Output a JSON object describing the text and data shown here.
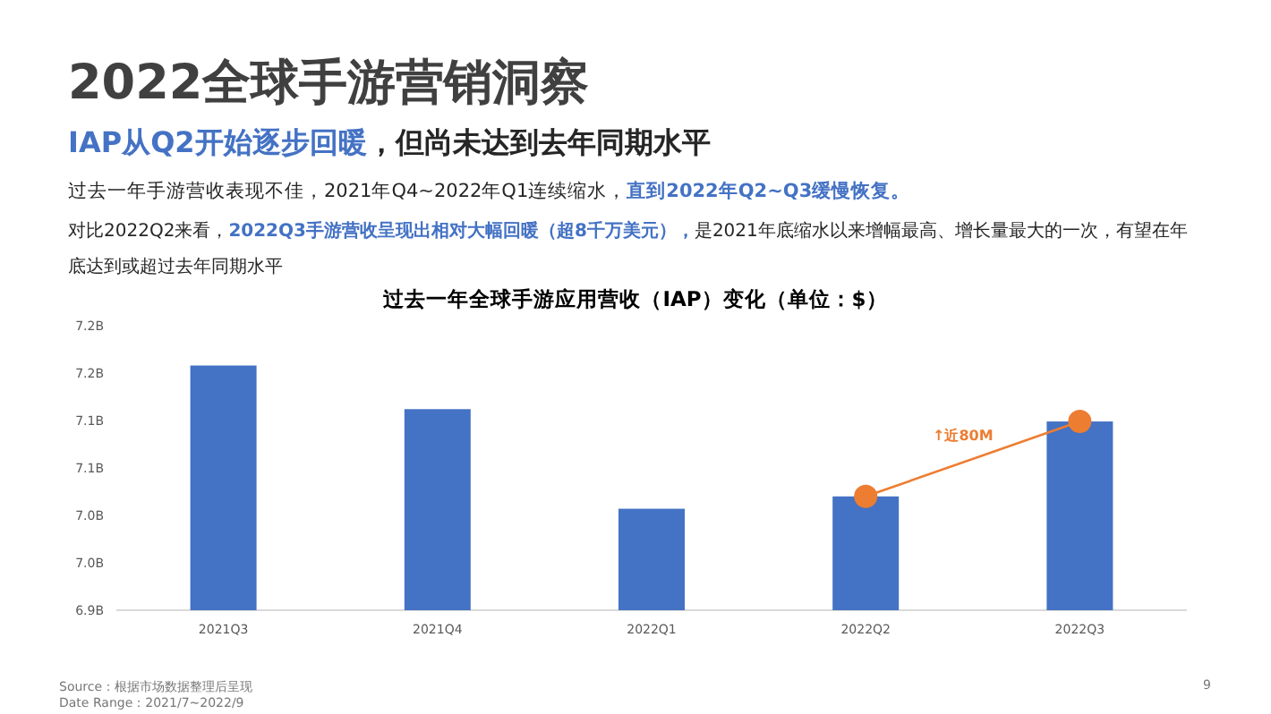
{
  "chart_data": {
    "type": "bar",
    "title": "2022全球手游营销洞察",
    "subtitle": "**IAP从Q2开始逐步回暖**，但尚未达到去年同期水平",
    "annotations": [
      "过去一年手游营收表现不佳，2021年Q4~2022年Q1连续缩水，**直到2022年Q2~Q3缓慢恢复。**",
      "对比2022Q2来看，**2022Q3手游营收呈现出相对大幅回暖（超8千万美元），**是2021年底缩水以来增幅最高、增长量最大的一次，有望在年底达到或超过去年同期水平",
      "过去一年全球手游应用营收（IAP）变化（单位：$）",
      "↑近80M",
      "Source：根据市场数据整理后呈现",
      "Date Range：2021/7~2022/9",
      "9"
    ],
    "categories": [
      "2021Q3",
      "2021Q4",
      "2022Q1",
      "2022Q2",
      "2022Q3"
    ],
    "series": [
      {
        "color": "#4472c4",
        "values": [
          7.208,
          7.162,
          7.057,
          7.07,
          7.149
        ]
      },
      {
        "type": "line",
        "color": "#ed7d31",
        "marker": "circle",
        "x": [
          "2022Q2",
          "2022Q3"
        ],
        "values": [
          7.07,
          7.149
        ]
      }
    ],
    "ylim": [
      6.95,
      7.25
    ],
    "yticks": [
      {
        "value": 6.95,
        "label": "6.9B"
      },
      {
        "value": 7.0,
        "label": "7.0B"
      },
      {
        "value": 7.05,
        "label": "7.0B"
      },
      {
        "value": 7.1,
        "label": "7.1B"
      },
      {
        "value": 7.15,
        "label": "7.1B"
      },
      {
        "value": 7.2,
        "label": "7.2B"
      },
      {
        "value": 7.25,
        "label": "7.2B"
      }
    ],
    "grid": false,
    "legend": false
  }
}
